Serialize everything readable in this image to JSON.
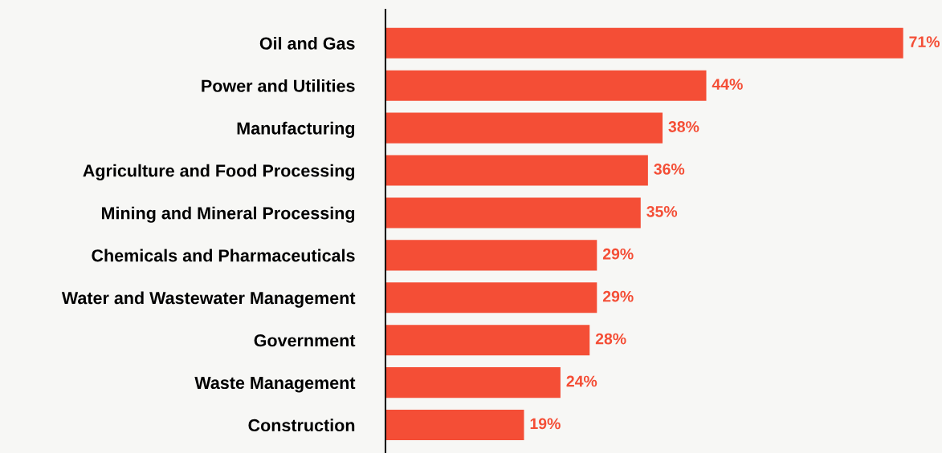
{
  "chart_data": {
    "type": "bar",
    "orientation": "horizontal",
    "categories": [
      "Oil and Gas",
      "Power and Utilities",
      "Manufacturing",
      "Agriculture and Food Processing",
      "Mining and Mineral Processing",
      "Chemicals and Pharmaceuticals",
      "Water and Wastewater Management",
      "Government",
      "Waste Management",
      "Construction"
    ],
    "values": [
      71,
      44,
      38,
      36,
      35,
      29,
      29,
      28,
      24,
      19
    ],
    "value_labels": [
      "71%",
      "44%",
      "38%",
      "36%",
      "35%",
      "29%",
      "29%",
      "28%",
      "24%",
      "19%"
    ],
    "color": "#f44e36",
    "grid": false,
    "legend": false,
    "tick_labels": "y"
  }
}
